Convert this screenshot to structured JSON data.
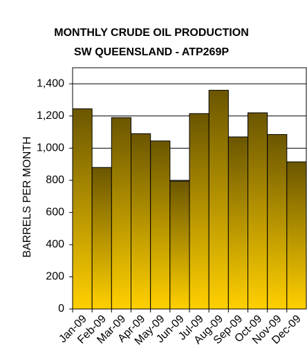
{
  "chart_data": {
    "type": "bar",
    "title": [
      "MONTHLY CRUDE OIL PRODUCTION",
      "SW QUEENSLAND - ATP269P"
    ],
    "ylabel": "BARRELS PER MONTH",
    "categories": [
      "Jan-09",
      "Feb-09",
      "Mar-09",
      "Apr-09",
      "May-09",
      "Jun-09",
      "Jul-09",
      "Aug-09",
      "Sep-09",
      "Oct-09",
      "Nov-09",
      "Dec-09"
    ],
    "values": [
      1245,
      880,
      1190,
      1090,
      1045,
      795,
      1215,
      1360,
      1070,
      1220,
      1085,
      915
    ],
    "color": [
      "#6b5600",
      "#ffd000"
    ],
    "ylim": [
      0,
      1500
    ],
    "yticks": [
      0,
      200,
      400,
      600,
      800,
      {
        "value": 1000,
        "label": "1,000"
      },
      {
        "value": 1200,
        "label": "1,200"
      },
      {
        "value": 1400,
        "label": "1,400"
      }
    ],
    "grid": true
  }
}
